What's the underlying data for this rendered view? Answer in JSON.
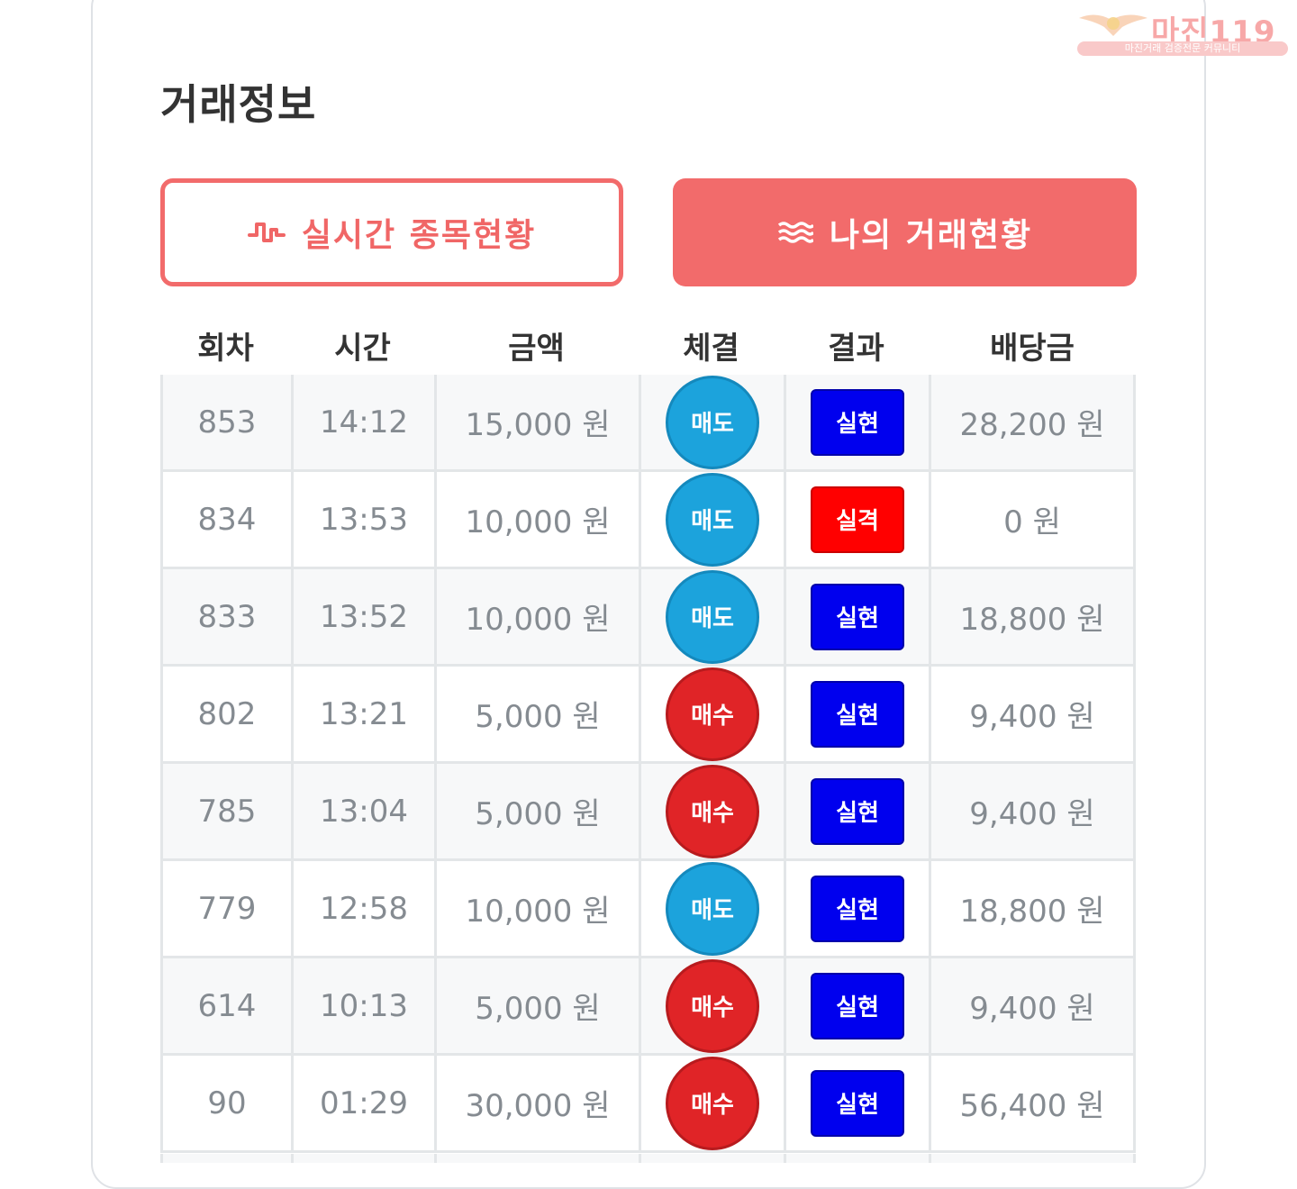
{
  "watermark": {
    "name": "마진119",
    "tagline": "마진거래 검증전문 커뮤니티"
  },
  "page": {
    "title": "거래정보"
  },
  "tabs": {
    "live": {
      "label": "실시간 종목현황",
      "icon": "pulse-icon"
    },
    "mine": {
      "label": "나의 거래현황",
      "icon": "waves-icon"
    }
  },
  "colors": {
    "accent": "#f26b6b",
    "sell": "#1ca3dc",
    "buy": "#e02427",
    "hit": "#0000ee",
    "miss": "#ff0000"
  },
  "table": {
    "headers": [
      "회차",
      "시간",
      "금액",
      "체결",
      "결과",
      "배당금"
    ],
    "rows": [
      {
        "round": "853",
        "time": "14:12",
        "amount": "15,000 원",
        "side": "매도",
        "result": "실현",
        "payout": "28,200 원"
      },
      {
        "round": "834",
        "time": "13:53",
        "amount": "10,000 원",
        "side": "매도",
        "result": "실격",
        "payout": "0 원"
      },
      {
        "round": "833",
        "time": "13:52",
        "amount": "10,000 원",
        "side": "매도",
        "result": "실현",
        "payout": "18,800 원"
      },
      {
        "round": "802",
        "time": "13:21",
        "amount": "5,000 원",
        "side": "매수",
        "result": "실현",
        "payout": "9,400 원"
      },
      {
        "round": "785",
        "time": "13:04",
        "amount": "5,000 원",
        "side": "매수",
        "result": "실현",
        "payout": "9,400 원"
      },
      {
        "round": "779",
        "time": "12:58",
        "amount": "10,000 원",
        "side": "매도",
        "result": "실현",
        "payout": "18,800 원"
      },
      {
        "round": "614",
        "time": "10:13",
        "amount": "5,000 원",
        "side": "매수",
        "result": "실현",
        "payout": "9,400 원"
      },
      {
        "round": "90",
        "time": "01:29",
        "amount": "30,000 원",
        "side": "매수",
        "result": "실현",
        "payout": "56,400 원"
      }
    ]
  }
}
